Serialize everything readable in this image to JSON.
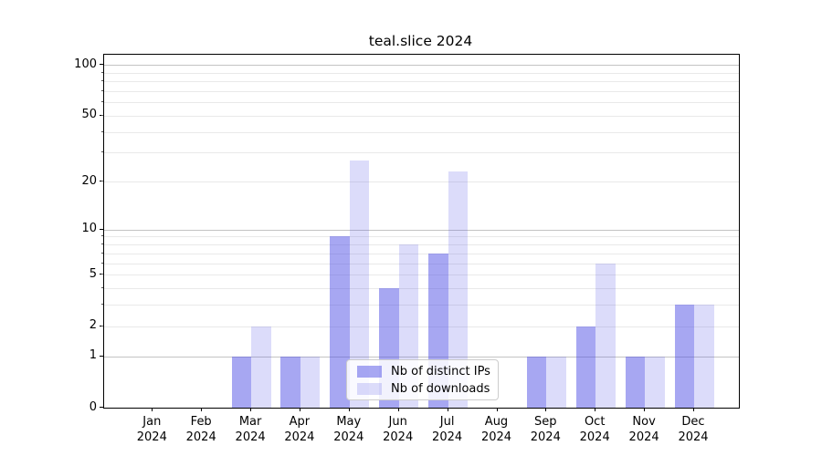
{
  "chart_data": {
    "type": "bar",
    "title": "teal.slice 2024",
    "categories": [
      "Jan 2024",
      "Feb 2024",
      "Mar 2024",
      "Apr 2024",
      "May 2024",
      "Jun 2024",
      "Jul 2024",
      "Aug 2024",
      "Sep 2024",
      "Oct 2024",
      "Nov 2024",
      "Dec 2024"
    ],
    "x_tick_months": [
      "Jan",
      "Feb",
      "Mar",
      "Apr",
      "May",
      "Jun",
      "Jul",
      "Aug",
      "Sep",
      "Oct",
      "Nov",
      "Dec"
    ],
    "x_tick_year": "2024",
    "series": [
      {
        "name": "Nb of distinct IPs",
        "color": "rgba(80,80,230,0.5)",
        "values": [
          0,
          0,
          1,
          1,
          9,
          4,
          7,
          0,
          1,
          2,
          1,
          3
        ]
      },
      {
        "name": "Nb of downloads",
        "color": "rgba(80,80,230,0.2)",
        "values": [
          0,
          0,
          2,
          1,
          27,
          8,
          23,
          0,
          1,
          6,
          1,
          3
        ]
      }
    ],
    "y_axis": {
      "scale": "log1p",
      "range": [
        0,
        100
      ],
      "tick_labels": [
        "0",
        "1",
        "2",
        "5",
        "10",
        "20",
        "50",
        "100"
      ],
      "major_gridlines": [
        1,
        10,
        100
      ],
      "minor_gridlines": [
        2,
        3,
        4,
        5,
        6,
        7,
        8,
        9,
        20,
        30,
        40,
        50,
        60,
        70,
        80,
        90
      ]
    },
    "legend": {
      "position": "lower center",
      "entries": [
        "Nb of distinct IPs",
        "Nb of downloads"
      ]
    },
    "grid": true
  }
}
